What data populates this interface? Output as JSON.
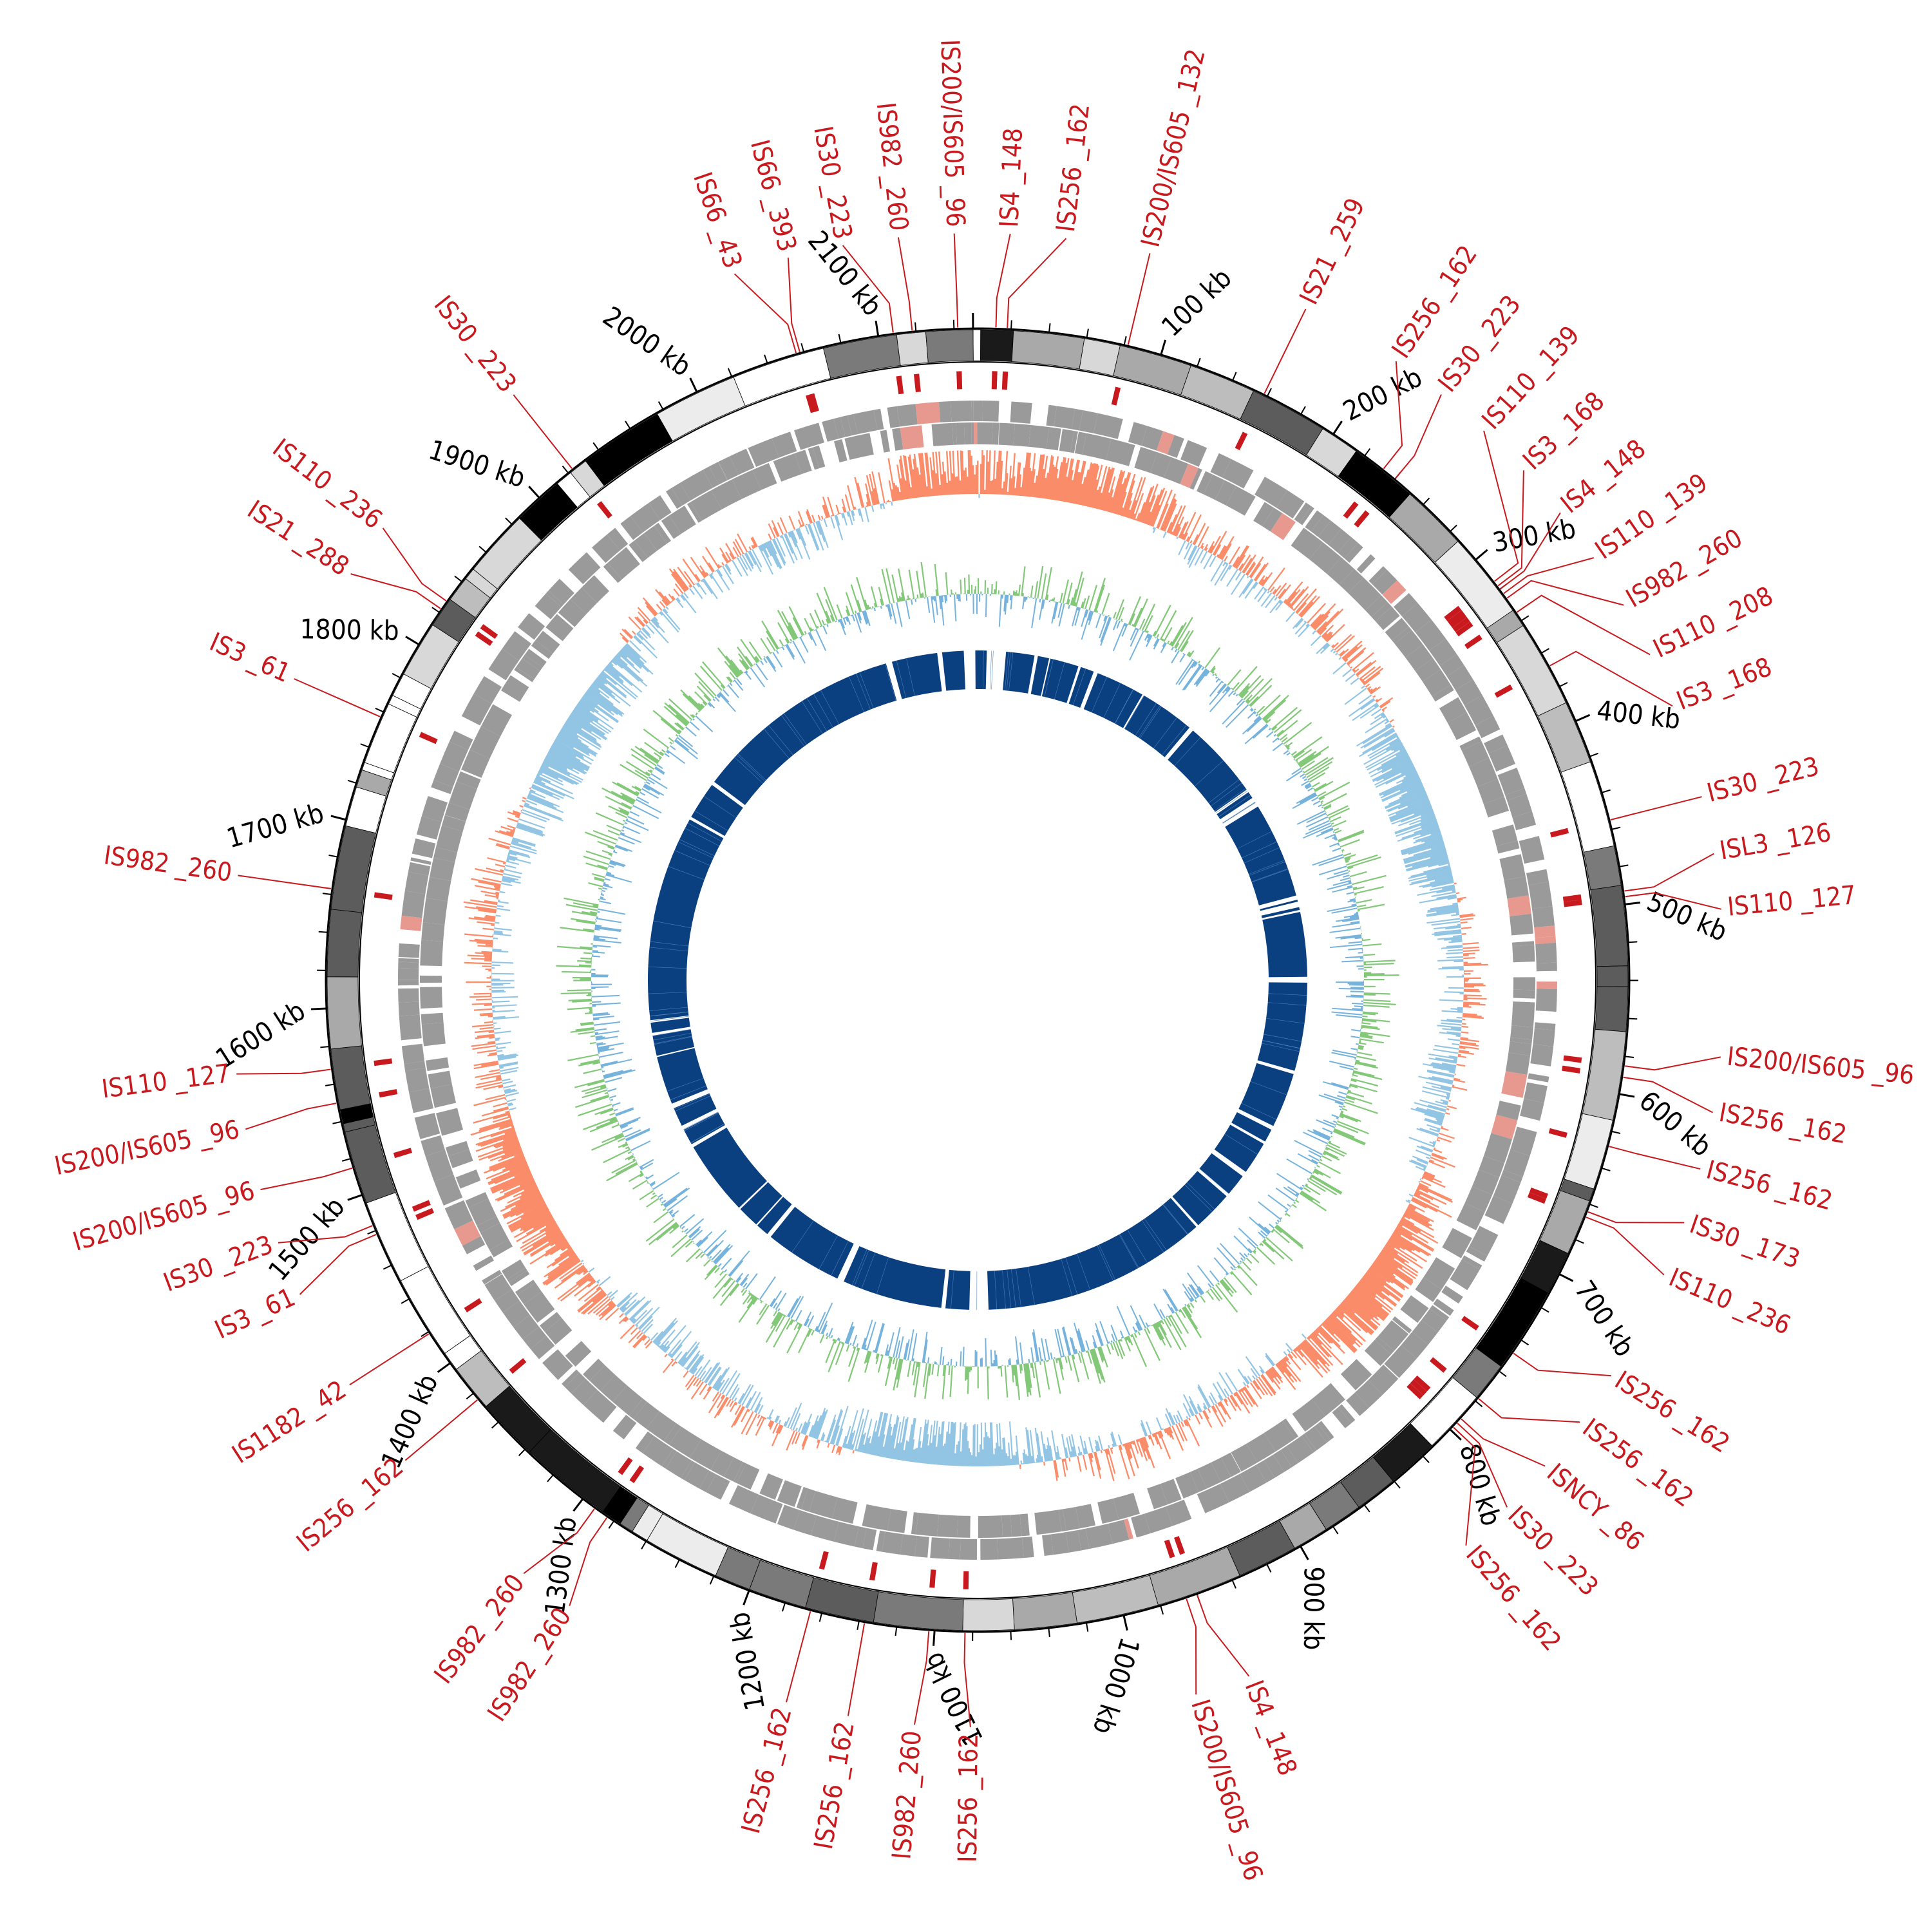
{
  "genome": {
    "length_kb": 2150,
    "start_angle_deg": -0.4
  },
  "colors": {
    "is_element": "#c8191e",
    "ideogram_gray": "#9a9a9a",
    "gc_skew_pos": "#fa8c6a",
    "gc_skew_neg": "#92c5e4",
    "gc_content_pos": "#82c878",
    "gc_content_neg": "#75b3dc",
    "inner_ring": "#0a3f80"
  },
  "axis_ticks": [
    {
      "kb": 100,
      "label": "100 kb"
    },
    {
      "kb": 200,
      "label": "200 kb"
    },
    {
      "kb": 300,
      "label": "300 kb"
    },
    {
      "kb": 400,
      "label": "400 kb"
    },
    {
      "kb": 500,
      "label": "500 kb"
    },
    {
      "kb": 600,
      "label": "600 kb"
    },
    {
      "kb": 700,
      "label": "700 kb"
    },
    {
      "kb": 800,
      "label": "800 kb"
    },
    {
      "kb": 900,
      "label": "900 kb"
    },
    {
      "kb": 1000,
      "label": "1000 kb"
    },
    {
      "kb": 1100,
      "label": "1100 kb"
    },
    {
      "kb": 1200,
      "label": "1200 kb"
    },
    {
      "kb": 1300,
      "label": "1300 kb"
    },
    {
      "kb": 1400,
      "label": "1400 kb"
    },
    {
      "kb": 1500,
      "label": "1500 kb"
    },
    {
      "kb": 1600,
      "label": "1600 kb"
    },
    {
      "kb": 1700,
      "label": "1700 kb"
    },
    {
      "kb": 1800,
      "label": "1800 kb"
    },
    {
      "kb": 1900,
      "label": "1900 kb"
    },
    {
      "kb": 2000,
      "label": "2000 kb"
    },
    {
      "kb": 2100,
      "label": "2100 kb"
    }
  ],
  "is_elements": [
    {
      "kb": 2056,
      "label": "IS66 _43"
    },
    {
      "kb": 2058,
      "label": "IS66 _393"
    },
    {
      "kb": 2108,
      "label": "IS30 _223"
    },
    {
      "kb": 2118,
      "label": "IS982 _260"
    },
    {
      "kb": 2142,
      "label": "IS200/IS605 _96"
    },
    {
      "kb": 12,
      "label": "IS4 _148"
    },
    {
      "kb": 18,
      "label": "IS256 _162"
    },
    {
      "kb": 82,
      "label": "IS200/IS605 _132"
    },
    {
      "kb": 158,
      "label": "IS21 _259"
    },
    {
      "kb": 232,
      "label": "IS256 _162"
    },
    {
      "kb": 240,
      "label": "IS30 _223"
    },
    {
      "kb": 315,
      "label": "IS110 _139"
    },
    {
      "kb": 318,
      "label": "IS3 _168"
    },
    {
      "kb": 320,
      "label": "IS4 _148"
    },
    {
      "kb": 323,
      "label": "IS110 _139"
    },
    {
      "kb": 326,
      "label": "IS982 _260"
    },
    {
      "kb": 335,
      "label": "IS110 _208"
    },
    {
      "kb": 368,
      "label": "IS3 _168"
    },
    {
      "kb": 455,
      "label": "IS30 _223"
    },
    {
      "kb": 493,
      "label": "ISL3 _126"
    },
    {
      "kb": 496,
      "label": "IS110 _127"
    },
    {
      "kb": 585,
      "label": "IS200/IS605 _96"
    },
    {
      "kb": 591,
      "label": "IS256 _162"
    },
    {
      "kb": 628,
      "label": "IS256 _162"
    },
    {
      "kb": 664,
      "label": "IS30 _173"
    },
    {
      "kb": 667,
      "label": "IS110 _236"
    },
    {
      "kb": 748,
      "label": "IS256 _162"
    },
    {
      "kb": 778,
      "label": "IS256 _162"
    },
    {
      "kb": 792,
      "label": "ISNCY _86"
    },
    {
      "kb": 795,
      "label": "IS30 _223"
    },
    {
      "kb": 798,
      "label": "IS256 _162"
    },
    {
      "kb": 960,
      "label": "IS4 _148"
    },
    {
      "kb": 966,
      "label": "IS200/IS605 _96"
    },
    {
      "kb": 1084,
      "label": "IS256 _162"
    },
    {
      "kb": 1103,
      "label": "IS982 _260"
    },
    {
      "kb": 1137,
      "label": "IS256 _162"
    },
    {
      "kb": 1166,
      "label": "IS256 _162"
    },
    {
      "kb": 1284,
      "label": "IS982 _260"
    },
    {
      "kb": 1292,
      "label": "IS982 _260"
    },
    {
      "kb": 1376,
      "label": "IS256 _162"
    },
    {
      "kb": 1419,
      "label": "IS1182 _42"
    },
    {
      "kb": 1478,
      "label": "IS3 _61"
    },
    {
      "kb": 1483,
      "label": "IS30 _223"
    },
    {
      "kb": 1515,
      "label": "IS200/IS605 _96"
    },
    {
      "kb": 1550,
      "label": "IS200/IS605 _96"
    },
    {
      "kb": 1568,
      "label": "IS110 _127"
    },
    {
      "kb": 1663,
      "label": "IS982 _260"
    },
    {
      "kb": 1757,
      "label": "IS3 _61"
    },
    {
      "kb": 1822,
      "label": "IS21 _288"
    },
    {
      "kb": 1827,
      "label": "IS110 _236"
    },
    {
      "kb": 1923,
      "label": "IS30 _223"
    }
  ],
  "inner_ring_gaps_kb": [
    2148,
    22,
    1076
  ]
}
